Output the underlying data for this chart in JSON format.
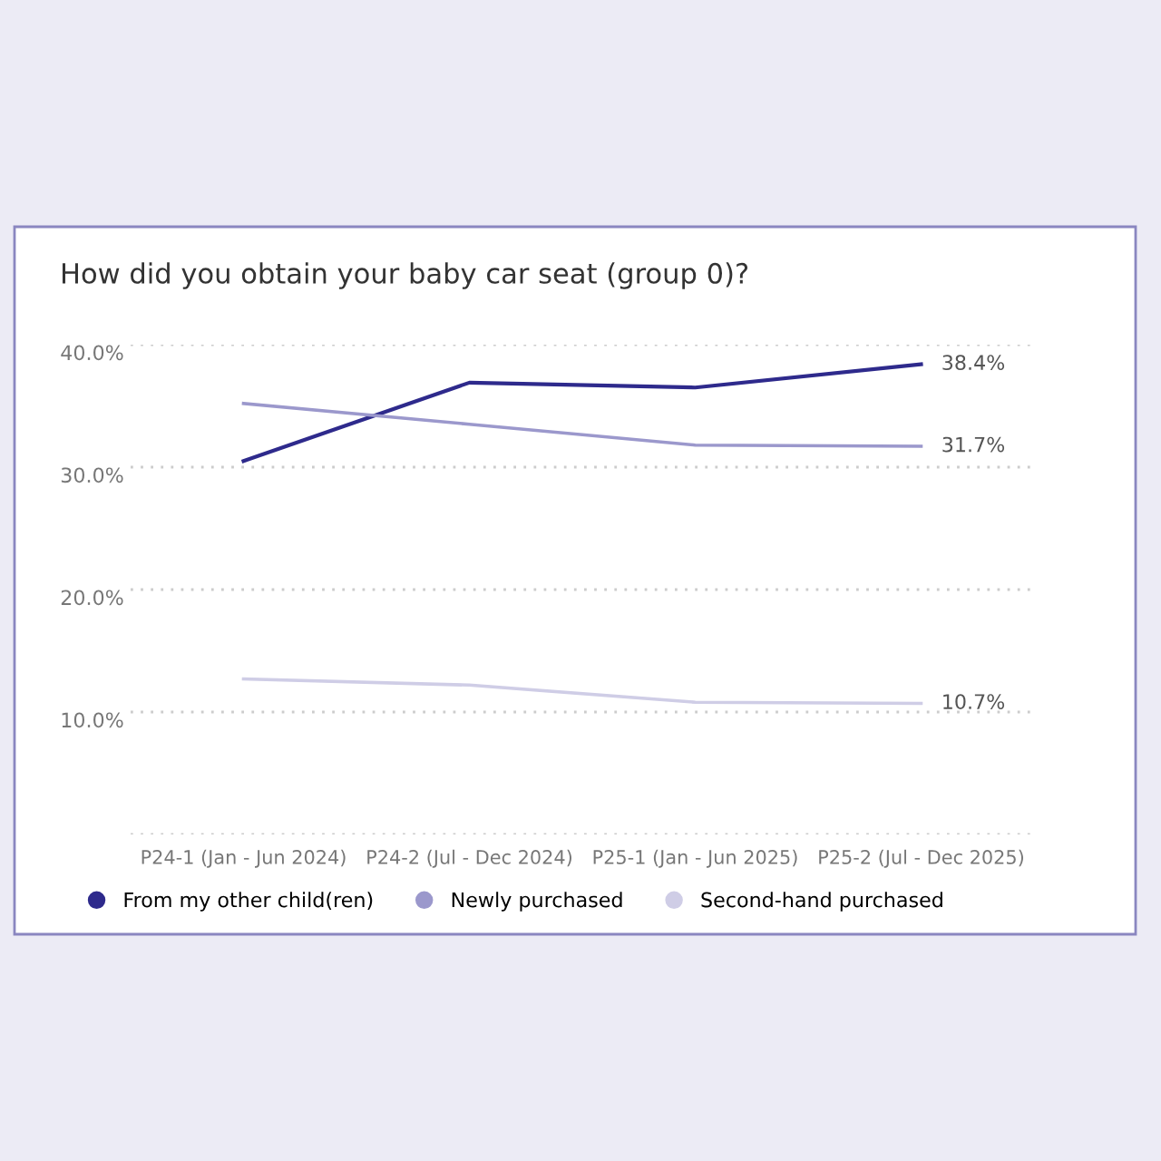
{
  "chart_data": {
    "type": "line",
    "title": "How did you obtain your baby car seat (group 0)?",
    "categories": [
      "P24-1 (Jan - Jun 2024)",
      "P24-2 (Jul - Dec 2024)",
      "P25-1 (Jan - Jun 2025)",
      "P25-2 (Jul - Dec 2025)"
    ],
    "series": [
      {
        "name": "From my other child(ren)",
        "color": "#2e2a8c",
        "values": [
          30.5,
          36.9,
          36.5,
          38.4
        ],
        "value_labels": [
          null,
          null,
          null,
          "38.4%"
        ]
      },
      {
        "name": "Newly purchased",
        "color": "#9b98cc",
        "values": [
          35.2,
          33.5,
          31.8,
          31.7
        ],
        "value_labels": [
          null,
          null,
          null,
          "31.7%"
        ]
      },
      {
        "name": "Second-hand purchased",
        "color": "#cfcde6",
        "values": [
          12.7,
          12.2,
          10.8,
          10.7
        ],
        "value_labels": [
          null,
          null,
          null,
          "10.7%"
        ]
      }
    ],
    "ylim": [
      0,
      40
    ],
    "yticks": [
      {
        "value": 0,
        "label": null
      },
      {
        "value": 10,
        "label": "10.0%"
      },
      {
        "value": 20,
        "label": "20.0%"
      },
      {
        "value": 30,
        "label": "30.0%"
      },
      {
        "value": 40,
        "label": "40.0%"
      }
    ],
    "grid": "y",
    "legend": "bottom left",
    "marker": "none",
    "line_style": "solid"
  }
}
